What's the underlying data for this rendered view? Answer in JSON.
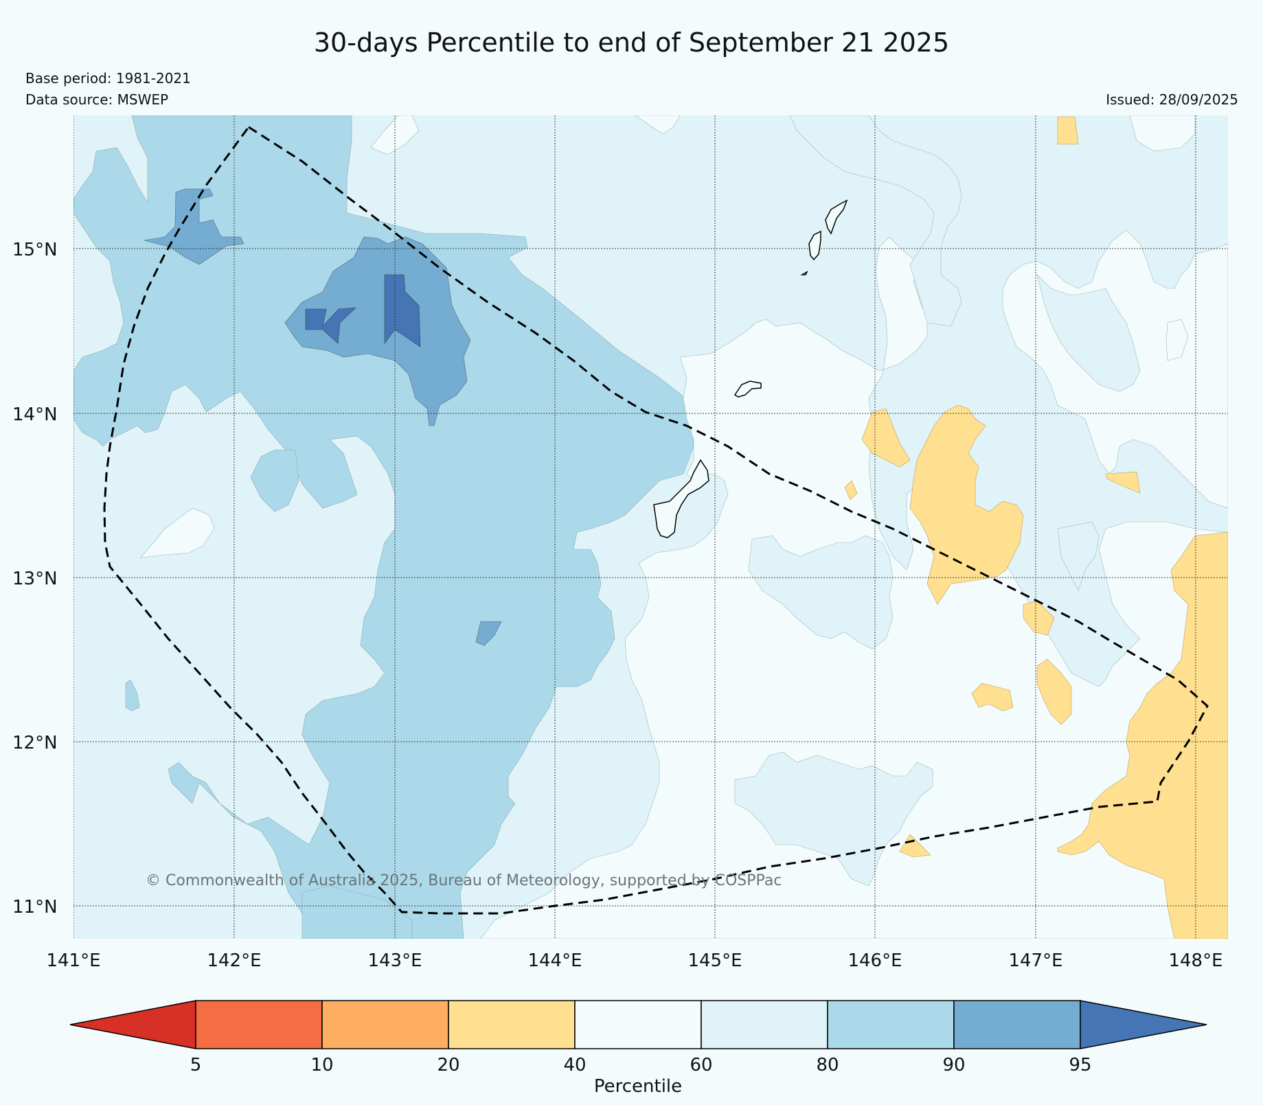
{
  "title": "30-days Percentile to end of September 21 2025",
  "base_period": "Base period: 1981-2021",
  "data_source": "Data source: MSWEP",
  "issued": "Issued: 28/09/2025",
  "copyright": "© Commonwealth of Australia 2025, Bureau of Meteorology, supported by COSPPac",
  "axes": {
    "lon_labels": [
      "141°E",
      "142°E",
      "143°E",
      "144°E",
      "145°E",
      "146°E",
      "147°E",
      "148°E"
    ],
    "lat_labels": [
      "15°N",
      "14°N",
      "13°N",
      "12°N",
      "11°N"
    ]
  },
  "colorbar": {
    "label": "Percentile",
    "ticks": [
      "5",
      "10",
      "20",
      "40",
      "60",
      "80",
      "90",
      "95"
    ],
    "colors": [
      "#d73027",
      "#f46d43",
      "#fdae61",
      "#fee090",
      "#f3fbfd",
      "#e0f3f8",
      "#abd9e9",
      "#74add1",
      "#4575b4"
    ]
  },
  "colors": {
    "background": "#f3fbfd",
    "dark_blue": "#4575b4",
    "mid_blue": "#74add1",
    "light_blue": "#abd9e9",
    "pale_blue": "#e0f3f8",
    "white": "#f3fbfd",
    "yellow": "#fee090"
  }
}
